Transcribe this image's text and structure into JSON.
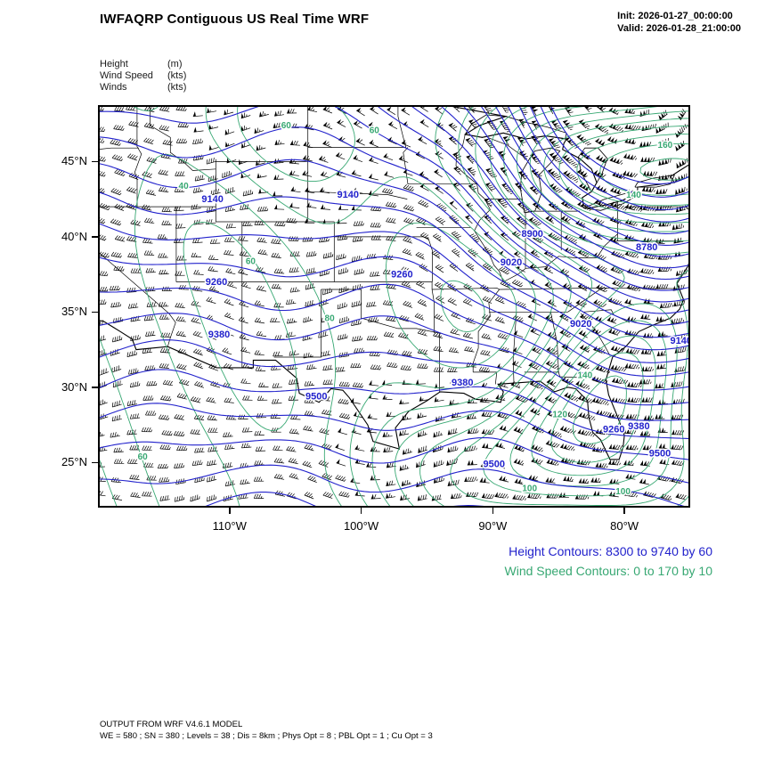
{
  "header": {
    "title": "IWFAQRP Contiguous US Real Time WRF",
    "init": "Init: 2026-01-27_00:00:00",
    "valid": "Valid: 2026-01-28_21:00:00"
  },
  "legend": {
    "items": [
      {
        "name": "Height",
        "unit": "(m)"
      },
      {
        "name": "Wind Speed",
        "unit": "(kts)"
      },
      {
        "name": "Winds",
        "unit": "(kts)"
      }
    ]
  },
  "captions": {
    "height": "Height Contours: 8300 to 9740 by 60",
    "wind": "Wind Speed Contours: 0 to 170 by 10"
  },
  "footer": {
    "line1": "OUTPUT FROM WRF V4.6.1 MODEL",
    "line2": "WE = 580 ; SN = 380 ; Levels = 38 ; Dis = 8km ; Phys Opt = 8 ; PBL Opt = 1 ; Cu Opt = 3"
  },
  "colors": {
    "height_contour": "#2222cc",
    "wind_contour": "#38a873",
    "barb": "#000000",
    "map_line": "#000000"
  },
  "chart_data": {
    "type": "contour-map",
    "title": "IWFAQRP Contiguous US Real Time WRF",
    "projection": {
      "lon_min": -120,
      "lon_max": -75,
      "lat_min": 22,
      "lat_max": 48.75
    },
    "x_axis": {
      "ticks": [
        {
          "label": "110°W",
          "lon": -110
        },
        {
          "label": "100°W",
          "lon": -100
        },
        {
          "label": "90°W",
          "lon": -90
        },
        {
          "label": "80°W",
          "lon": -80
        }
      ]
    },
    "y_axis": {
      "ticks": [
        {
          "label": "45°N",
          "lat": 45
        },
        {
          "label": "40°N",
          "lat": 40
        },
        {
          "label": "35°N",
          "lat": 35
        },
        {
          "label": "30°N",
          "lat": 30
        },
        {
          "label": "25°N",
          "lat": 25
        }
      ]
    },
    "height_contours": {
      "units": "m",
      "start": 8300,
      "end": 9740,
      "interval": 60,
      "labels": [
        {
          "v": 9140,
          "lon": -111.3,
          "lat": 42.3
        },
        {
          "v": 9140,
          "lon": -101.0,
          "lat": 42.6
        },
        {
          "v": 9260,
          "lon": -111.0,
          "lat": 36.8
        },
        {
          "v": 9380,
          "lon": -110.8,
          "lat": 33.3
        },
        {
          "v": 9500,
          "lon": -103.4,
          "lat": 29.2
        },
        {
          "v": 9260,
          "lon": -96.9,
          "lat": 37.3
        },
        {
          "v": 9380,
          "lon": -92.3,
          "lat": 30.1
        },
        {
          "v": 9500,
          "lon": -89.9,
          "lat": 24.7
        },
        {
          "v": 8900,
          "lon": -87.0,
          "lat": 40.0
        },
        {
          "v": 9020,
          "lon": -88.6,
          "lat": 38.1
        },
        {
          "v": 8780,
          "lon": -78.3,
          "lat": 39.1
        },
        {
          "v": 9020,
          "lon": -83.3,
          "lat": 34.0
        },
        {
          "v": 9140,
          "lon": -75.7,
          "lat": 32.9
        },
        {
          "v": 9260,
          "lon": -80.8,
          "lat": 27.0
        },
        {
          "v": 9380,
          "lon": -78.9,
          "lat": 27.2
        },
        {
          "v": 9500,
          "lon": -77.3,
          "lat": 25.4
        }
      ]
    },
    "wind_speed_contours": {
      "units": "kts",
      "start": 0,
      "end": 170,
      "interval": 10,
      "labels": [
        {
          "v": 60,
          "lon": -105.7,
          "lat": 47.2
        },
        {
          "v": 60,
          "lon": -99.0,
          "lat": 46.9
        },
        {
          "v": 40,
          "lon": -113.5,
          "lat": 43.2
        },
        {
          "v": 160,
          "lon": -76.9,
          "lat": 45.9
        },
        {
          "v": 140,
          "lon": -79.3,
          "lat": 42.6
        },
        {
          "v": 60,
          "lon": -108.4,
          "lat": 38.2
        },
        {
          "v": 80,
          "lon": -102.4,
          "lat": 34.4
        },
        {
          "v": 60,
          "lon": -116.6,
          "lat": 25.2
        },
        {
          "v": 100,
          "lon": -87.2,
          "lat": 23.1
        },
        {
          "v": 120,
          "lon": -84.9,
          "lat": 28.0
        },
        {
          "v": 140,
          "lon": -83.0,
          "lat": 30.6
        },
        {
          "v": 100,
          "lon": -80.1,
          "lat": 22.9
        }
      ]
    },
    "winds": {
      "units": "kts",
      "symbol": "barbs"
    }
  }
}
